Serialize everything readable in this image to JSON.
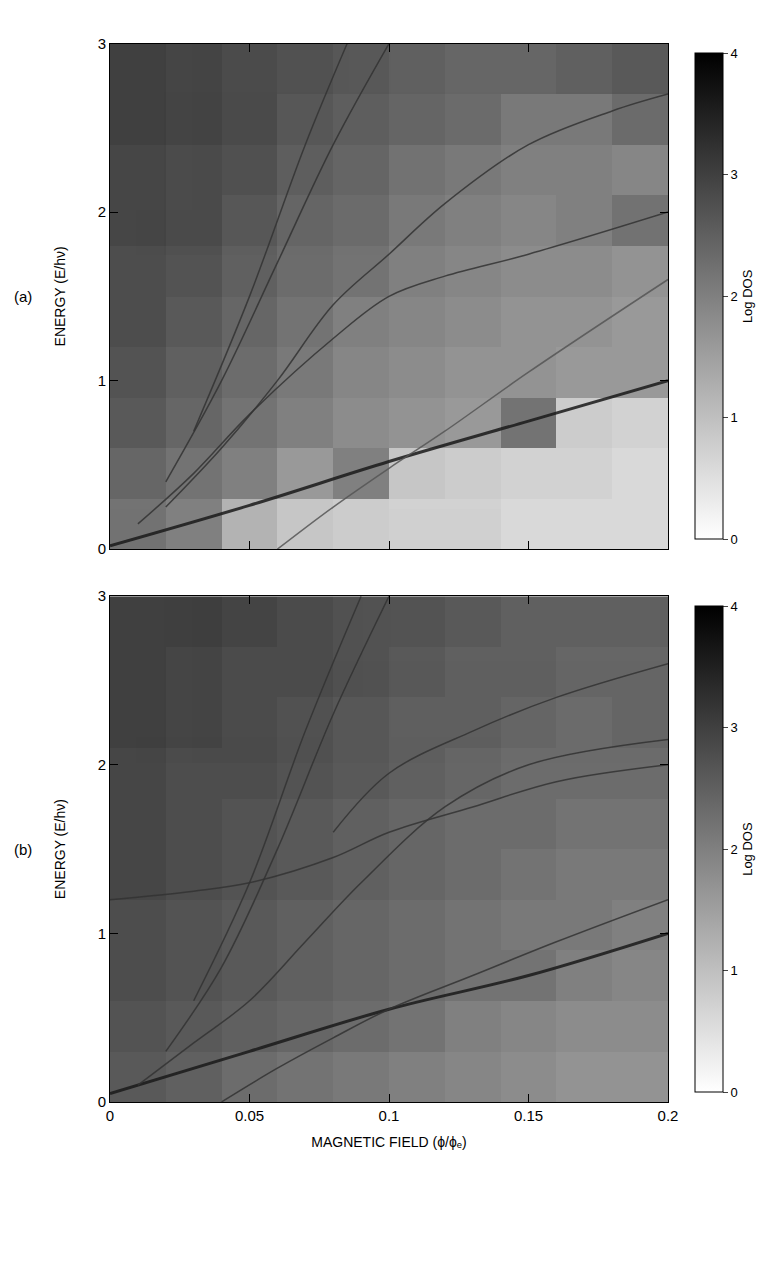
{
  "chart_data": [
    {
      "type": "heatmap",
      "panel_label": "(a)",
      "ylabel": "ENERGY (E/hν)",
      "xlim": [
        0,
        0.2
      ],
      "xticks": [
        0,
        0.05,
        0.1,
        0.15,
        0.2
      ],
      "ylim": [
        0,
        3
      ],
      "yticks": [
        0,
        1,
        2,
        3
      ],
      "tick_labels": "y",
      "colorbar_title": "Log DOS",
      "zlim": [
        0,
        4
      ],
      "zticks": [
        0,
        1,
        2,
        3,
        4
      ],
      "x": [
        0.01,
        0.03,
        0.05,
        0.07,
        0.09,
        0.11,
        0.13,
        0.15,
        0.17,
        0.19
      ],
      "y": [
        0.15,
        0.45,
        0.75,
        1.05,
        1.35,
        1.65,
        1.95,
        2.25,
        2.55,
        2.85
      ],
      "z": [
        [
          2.2,
          2.0,
          1.2,
          0.9,
          0.8,
          0.7,
          0.7,
          0.6,
          0.6,
          0.6
        ],
        [
          2.4,
          2.2,
          2.0,
          1.6,
          2.0,
          0.9,
          0.8,
          0.7,
          0.7,
          0.6
        ],
        [
          2.6,
          2.4,
          2.2,
          2.0,
          1.8,
          1.7,
          1.6,
          2.2,
          0.8,
          0.7
        ],
        [
          2.7,
          2.5,
          2.3,
          2.1,
          1.9,
          1.8,
          1.7,
          1.7,
          1.6,
          1.6
        ],
        [
          2.8,
          2.6,
          2.4,
          2.2,
          2.0,
          1.9,
          1.8,
          1.7,
          1.7,
          1.6
        ],
        [
          2.8,
          2.7,
          2.5,
          2.3,
          2.2,
          2.0,
          1.9,
          1.8,
          1.8,
          1.7
        ],
        [
          2.9,
          2.8,
          2.6,
          2.4,
          2.3,
          2.1,
          2.0,
          1.9,
          2.0,
          2.2
        ],
        [
          2.9,
          2.8,
          2.7,
          2.5,
          2.4,
          2.2,
          2.1,
          2.0,
          2.0,
          1.9
        ],
        [
          3.0,
          2.9,
          2.8,
          2.6,
          2.5,
          2.4,
          2.3,
          2.1,
          2.1,
          2.3
        ],
        [
          3.0,
          2.9,
          2.8,
          2.7,
          2.6,
          2.5,
          2.4,
          2.4,
          2.5,
          2.6
        ]
      ],
      "series": [
        {
          "type": "line",
          "color": "#1a1a1a",
          "x": [
            0,
            0.05,
            0.1,
            0.15,
            0.2
          ],
          "values": [
            0.02,
            0.26,
            0.52,
            0.76,
            1.0
          ]
        },
        {
          "type": "line",
          "color": "#555555",
          "x": [
            0.06,
            0.08,
            0.1,
            0.12,
            0.15,
            0.2
          ],
          "values": [
            0,
            0.25,
            0.48,
            0.7,
            1.05,
            1.6
          ]
        },
        {
          "type": "line",
          "color": "#333333",
          "x": [
            0.01,
            0.03,
            0.05,
            0.08,
            0.1,
            0.12,
            0.15,
            0.2
          ],
          "values": [
            0.15,
            0.45,
            0.8,
            1.25,
            1.5,
            1.62,
            1.75,
            2.0
          ]
        },
        {
          "type": "line",
          "color": "#333333",
          "x": [
            0.02,
            0.04,
            0.06,
            0.08,
            0.1,
            0.12,
            0.15,
            0.18,
            0.2
          ],
          "values": [
            0.25,
            0.6,
            1.0,
            1.45,
            1.75,
            2.05,
            2.4,
            2.6,
            2.7
          ]
        },
        {
          "type": "line",
          "color": "#333333",
          "x": [
            0.02,
            0.04,
            0.06,
            0.08,
            0.1
          ],
          "values": [
            0.4,
            1.0,
            1.7,
            2.4,
            3.0
          ]
        },
        {
          "type": "line",
          "color": "#333333",
          "x": [
            0.03,
            0.05,
            0.07,
            0.085
          ],
          "values": [
            0.7,
            1.5,
            2.4,
            3.0
          ]
        }
      ]
    },
    {
      "type": "heatmap",
      "panel_label": "(b)",
      "ylabel": "ENERGY (E/hν)",
      "xlabel": "MAGNETIC FIELD (ϕ/ϕₑ)",
      "xlim": [
        0,
        0.2
      ],
      "xticks": [
        0,
        0.05,
        0.1,
        0.15,
        0.2
      ],
      "ylim": [
        0,
        3
      ],
      "yticks": [
        0,
        1,
        2,
        3
      ],
      "colorbar_title": "Log DOS",
      "zlim": [
        0,
        4
      ],
      "zticks": [
        0,
        1,
        2,
        3,
        4
      ],
      "x": [
        0.01,
        0.03,
        0.05,
        0.07,
        0.09,
        0.11,
        0.13,
        0.15,
        0.17,
        0.19
      ],
      "y": [
        0.15,
        0.45,
        0.75,
        1.05,
        1.35,
        1.65,
        1.95,
        2.25,
        2.55,
        2.85
      ],
      "z": [
        [
          2.6,
          2.5,
          2.3,
          2.2,
          2.1,
          2.0,
          1.9,
          1.8,
          1.7,
          1.7
        ],
        [
          2.7,
          2.6,
          2.5,
          2.4,
          2.3,
          2.2,
          2.0,
          1.9,
          1.8,
          1.8
        ],
        [
          2.8,
          2.7,
          2.6,
          2.5,
          2.4,
          2.3,
          2.2,
          2.2,
          2.0,
          1.9
        ],
        [
          2.8,
          2.7,
          2.6,
          2.5,
          2.4,
          2.3,
          2.2,
          2.1,
          2.1,
          2.0
        ],
        [
          2.9,
          2.8,
          2.7,
          2.6,
          2.5,
          2.4,
          2.3,
          2.2,
          2.1,
          2.1
        ],
        [
          2.9,
          2.8,
          2.7,
          2.6,
          2.5,
          2.4,
          2.3,
          2.3,
          2.2,
          2.2
        ],
        [
          2.9,
          2.8,
          2.8,
          2.7,
          2.6,
          2.5,
          2.4,
          2.3,
          2.3,
          2.3
        ],
        [
          3.0,
          2.9,
          2.8,
          2.7,
          2.6,
          2.5,
          2.5,
          2.4,
          2.3,
          2.4
        ],
        [
          3.0,
          2.9,
          2.8,
          2.8,
          2.7,
          2.6,
          2.5,
          2.5,
          2.4,
          2.4
        ],
        [
          3.0,
          3.0,
          2.9,
          2.8,
          2.7,
          2.7,
          2.6,
          2.5,
          2.5,
          2.5
        ]
      ],
      "series": [
        {
          "type": "line",
          "color": "#1a1a1a",
          "x": [
            0,
            0.05,
            0.1,
            0.15,
            0.2
          ],
          "values": [
            0.05,
            0.3,
            0.55,
            0.75,
            1.0
          ]
        },
        {
          "type": "line",
          "color": "#333333",
          "x": [
            0.04,
            0.06,
            0.08,
            0.1,
            0.13,
            0.16,
            0.2
          ],
          "values": [
            0,
            0.2,
            0.38,
            0.55,
            0.75,
            0.95,
            1.2
          ]
        },
        {
          "type": "line",
          "color": "#333333",
          "x": [
            0,
            0.03,
            0.05,
            0.08,
            0.1,
            0.13,
            0.16,
            0.2
          ],
          "values": [
            1.2,
            1.25,
            1.3,
            1.45,
            1.6,
            1.75,
            1.9,
            2.0
          ]
        },
        {
          "type": "line",
          "color": "#333333",
          "x": [
            0.01,
            0.03,
            0.05,
            0.07,
            0.09,
            0.12,
            0.15,
            0.2
          ],
          "values": [
            0.1,
            0.35,
            0.6,
            0.95,
            1.3,
            1.75,
            2.0,
            2.15
          ]
        },
        {
          "type": "line",
          "color": "#333333",
          "x": [
            0.08,
            0.1,
            0.13,
            0.16,
            0.2
          ],
          "values": [
            1.6,
            1.95,
            2.2,
            2.4,
            2.6
          ]
        },
        {
          "type": "line",
          "color": "#333333",
          "x": [
            0.02,
            0.04,
            0.06,
            0.08,
            0.1
          ],
          "values": [
            0.3,
            0.8,
            1.5,
            2.3,
            3.0
          ]
        },
        {
          "type": "line",
          "color": "#333333",
          "x": [
            0.03,
            0.05,
            0.07,
            0.09
          ],
          "values": [
            0.6,
            1.3,
            2.2,
            3.0
          ]
        }
      ]
    }
  ]
}
